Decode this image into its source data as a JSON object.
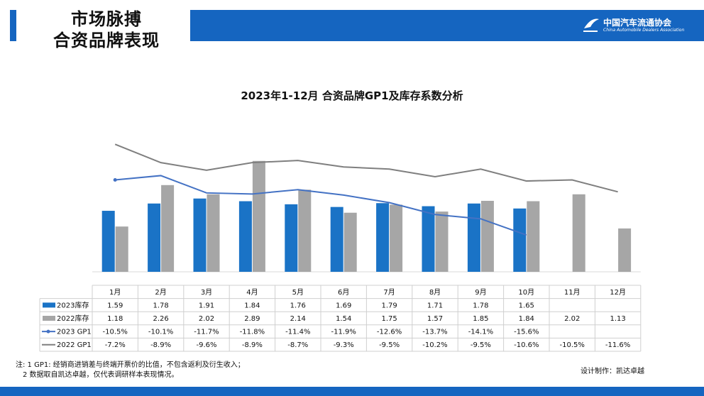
{
  "header": {
    "title_line1": "市场脉搏",
    "title_line2": "合资品牌表现",
    "logo_cn": "中国汽车流通协会",
    "logo_en": "China Automobile Dealers Association"
  },
  "colors": {
    "accent": "#1565c0",
    "bar_2023": "#1a73c6",
    "bar_2022": "#a6a6a6",
    "line_2023": "#4472c4",
    "line_2022": "#7f7f7f"
  },
  "chart_data": {
    "type": "bar",
    "title": "2023年1-12月 合资品牌GP1及库存系数分析",
    "categories": [
      "1月",
      "2月",
      "3月",
      "4月",
      "5月",
      "6月",
      "7月",
      "8月",
      "9月",
      "10月",
      "11月",
      "12月"
    ],
    "series": [
      {
        "name": "2023库存",
        "kind": "bar",
        "values": [
          1.59,
          1.78,
          1.91,
          1.84,
          1.76,
          1.69,
          1.79,
          1.71,
          1.78,
          1.65,
          null,
          null
        ],
        "labels": [
          "1.59",
          "1.78",
          "1.91",
          "1.84",
          "1.76",
          "1.69",
          "1.79",
          "1.71",
          "1.78",
          "1.65",
          "",
          ""
        ]
      },
      {
        "name": "2022库存",
        "kind": "bar",
        "values": [
          1.18,
          2.26,
          2.02,
          2.89,
          2.14,
          1.54,
          1.75,
          1.57,
          1.85,
          1.84,
          2.02,
          1.13
        ],
        "labels": [
          "1.18",
          "2.26",
          "2.02",
          "2.89",
          "2.14",
          "1.54",
          "1.75",
          "1.57",
          "1.85",
          "1.84",
          "2.02",
          "1.13"
        ]
      },
      {
        "name": "2023 GP1",
        "kind": "line",
        "values": [
          -10.5,
          -10.1,
          -11.7,
          -11.8,
          -11.4,
          -11.9,
          -12.6,
          -13.7,
          -14.1,
          -15.6,
          null,
          null
        ],
        "labels": [
          "-10.5%",
          "-10.1%",
          "-11.7%",
          "-11.8%",
          "-11.4%",
          "-11.9%",
          "-12.6%",
          "-13.7%",
          "-14.1%",
          "-15.6%",
          "",
          ""
        ]
      },
      {
        "name": "2022 GP1",
        "kind": "line",
        "values": [
          -7.2,
          -8.9,
          -9.6,
          -8.9,
          -8.7,
          -9.3,
          -9.5,
          -10.2,
          -9.5,
          -10.6,
          -10.5,
          -11.6
        ],
        "labels": [
          "-7.2%",
          "-8.9%",
          "-9.6%",
          "-8.9%",
          "-8.7%",
          "-9.3%",
          "-9.5%",
          "-10.2%",
          "-9.5%",
          "-10.6%",
          "-10.5%",
          "-11.6%"
        ]
      }
    ],
    "ylim": [
      0,
      3.2
    ],
    "y2lim": [
      -19,
      -6
    ],
    "grid": false,
    "legend": "data-table"
  },
  "footer": {
    "note1": "注: 1  GP1: 经销商进销差与终端开票价的比值，不包含返利及衍生收入；",
    "note2": "2 数据取自凯达卓越，仅代表调研样本表现情况。",
    "designer": "设计制作：凯达卓越"
  }
}
